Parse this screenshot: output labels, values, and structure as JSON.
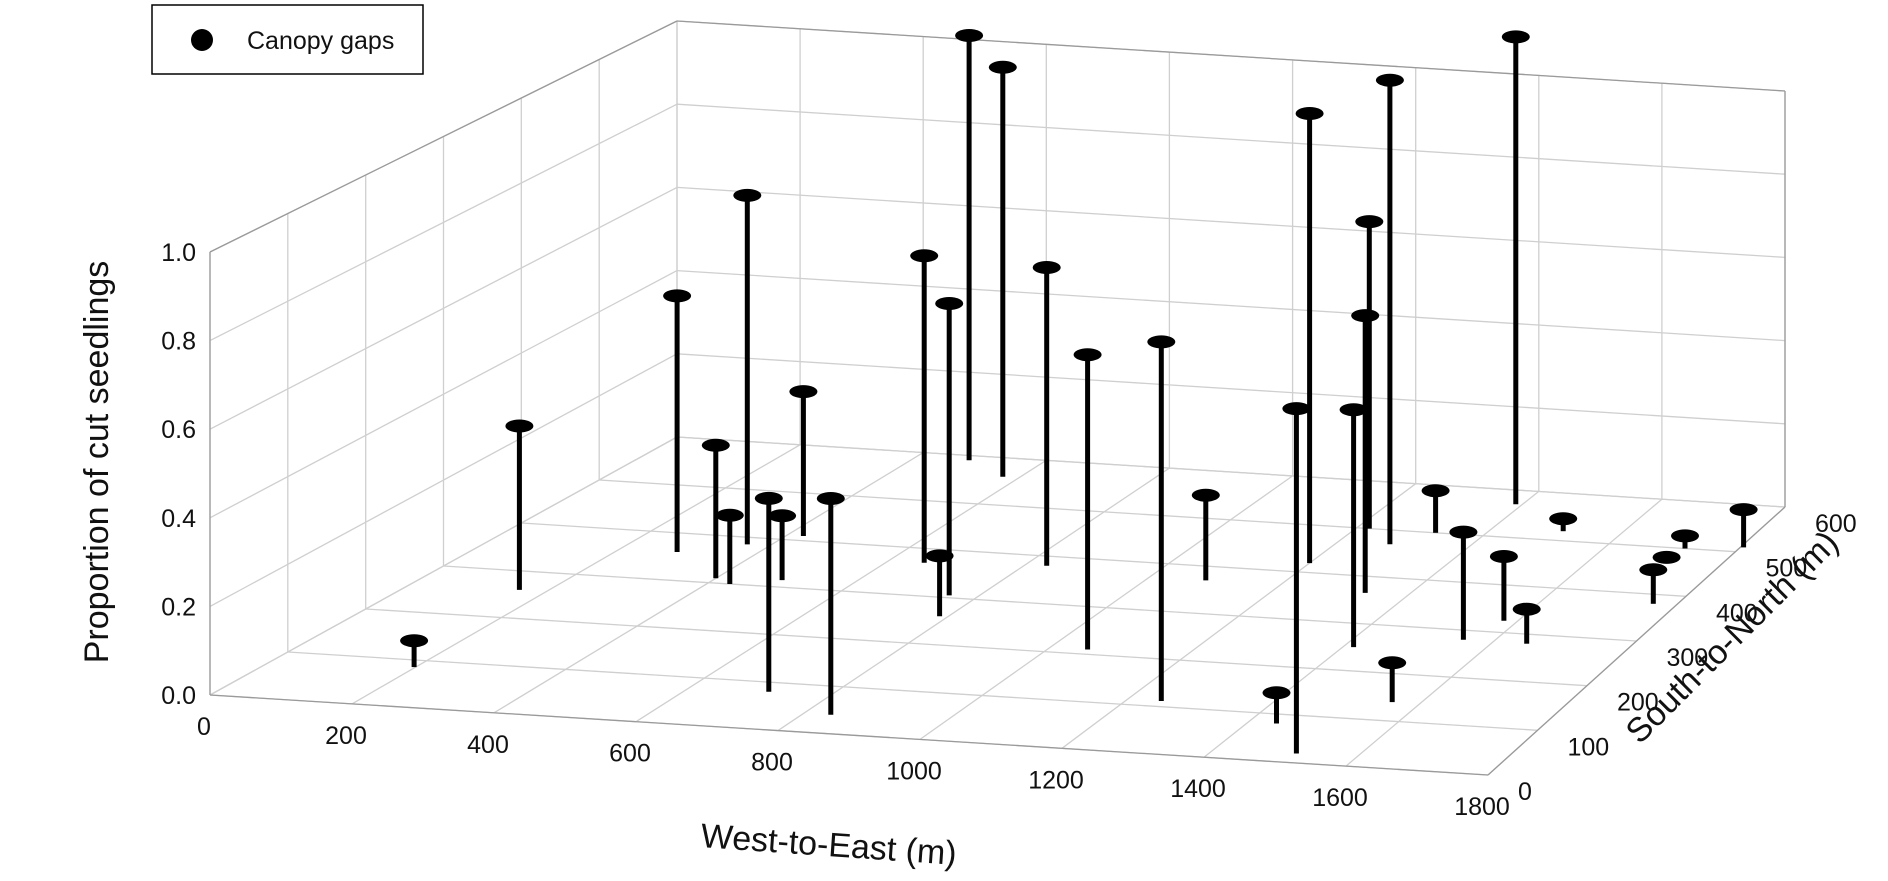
{
  "chart_data": {
    "type": "scatter",
    "title": "",
    "legend": {
      "entries": [
        "Canopy gaps"
      ],
      "position": "top-left",
      "marker": "filled-circle",
      "color": "#000000"
    },
    "xlabel": "West-to-East (m)",
    "ylabel": "South-to-North (m)",
    "zlabel": "Proportion of cut seedlings",
    "xlim": [
      0,
      1800
    ],
    "ylim": [
      0,
      600
    ],
    "zlim": [
      0,
      1.0
    ],
    "x_ticks": [
      "0",
      "200",
      "400",
      "600",
      "800",
      "1000",
      "1200",
      "1400",
      "1600",
      "1800"
    ],
    "y_ticks": [
      "0",
      "100",
      "200",
      "300",
      "400",
      "500",
      "600"
    ],
    "z_ticks": [
      "0.0",
      "0.2",
      "0.4",
      "0.6",
      "0.8",
      "1.0"
    ],
    "grid": true,
    "series": [
      {
        "name": "Canopy gaps",
        "points": [
          {
            "x": 198,
            "y": 85,
            "z": 0.06
          },
          {
            "x": 160,
            "y": 260,
            "z": 0.38
          },
          {
            "x": 286,
            "y": 360,
            "z": 0.6
          },
          {
            "x": 366,
            "y": 385,
            "z": 0.82
          },
          {
            "x": 400,
            "y": 310,
            "z": 0.31
          },
          {
            "x": 432,
            "y": 300,
            "z": 0.16
          },
          {
            "x": 495,
            "y": 315,
            "z": 0.15
          },
          {
            "x": 425,
            "y": 410,
            "z": 0.34
          },
          {
            "x": 486,
            "y": 590,
            "z": 1.02
          },
          {
            "x": 574,
            "y": 560,
            "z": 0.98
          },
          {
            "x": 654,
            "y": 370,
            "z": 0.72
          },
          {
            "x": 712,
            "y": 80,
            "z": 0.44
          },
          {
            "x": 788,
            "y": 260,
            "z": 0.14
          },
          {
            "x": 758,
            "y": 305,
            "z": 0.68
          },
          {
            "x": 832,
            "y": 380,
            "z": 0.7
          },
          {
            "x": 838,
            "y": 40,
            "z": 0.49
          },
          {
            "x": 1055,
            "y": 210,
            "z": 0.68
          },
          {
            "x": 1086,
            "y": 370,
            "z": 0.2
          },
          {
            "x": 1220,
            "y": 500,
            "z": 0.73
          },
          {
            "x": 1200,
            "y": 420,
            "z": 1.06
          },
          {
            "x": 1280,
            "y": 470,
            "z": 1.1
          },
          {
            "x": 1390,
            "y": 570,
            "z": 1.12
          },
          {
            "x": 1248,
            "y": 112,
            "z": 0.82
          },
          {
            "x": 1325,
            "y": 500,
            "z": 0.1
          },
          {
            "x": 1415,
            "y": 250,
            "z": 0.55
          },
          {
            "x": 1335,
            "y": 365,
            "z": 0.65
          },
          {
            "x": 1440,
            "y": 80,
            "z": 0.07
          },
          {
            "x": 1560,
            "y": 140,
            "z": 0.09
          },
          {
            "x": 1555,
            "y": 280,
            "z": 0.25
          },
          {
            "x": 1510,
            "y": 520,
            "z": 0.03
          },
          {
            "x": 1580,
            "y": 325,
            "z": 0.15
          },
          {
            "x": 1515,
            "y": 20,
            "z": 0.78
          },
          {
            "x": 1720,
            "y": 500,
            "z": 0.03
          },
          {
            "x": 1650,
            "y": 280,
            "z": 0.08
          },
          {
            "x": 1805,
            "y": 510,
            "z": 0.09
          },
          {
            "x": 1765,
            "y": 380,
            "z": 0.08
          },
          {
            "x": 1715,
            "y": 470,
            "z": 0.01
          }
        ]
      }
    ]
  }
}
